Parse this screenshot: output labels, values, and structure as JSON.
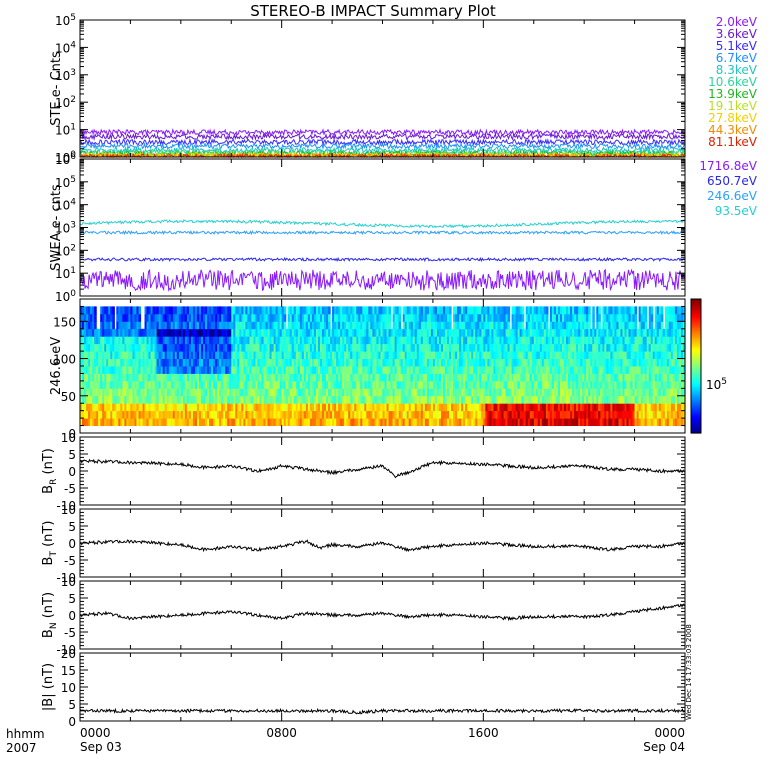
{
  "title": "STEREO-B IMPACT Summary Plot",
  "stamp": "Wed Dec 14 17:33:03 2008",
  "colors": {
    "ste": [
      "#8a1aff",
      "#6a1acf",
      "#3a2bff",
      "#1e90ff",
      "#23c4c4",
      "#2fd59a",
      "#22b422",
      "#b8e022",
      "#f0d000",
      "#f08c00",
      "#d82200"
    ],
    "swea": [
      "#8a1aff",
      "#2a28e8",
      "#2aa0ff",
      "#23d0d0"
    ]
  },
  "x_axis": {
    "corner_top": "hhmm",
    "corner_bottom": "2007",
    "ticks": [
      {
        "label": "0000",
        "sub": "Sep 03",
        "t": 0
      },
      {
        "label": "0800",
        "sub": "",
        "t": 8
      },
      {
        "label": "1600",
        "sub": "",
        "t": 16
      },
      {
        "label": "0000",
        "sub": "Sep 04",
        "t": 24
      }
    ]
  },
  "chart_data": [
    {
      "type": "line",
      "name": "ste",
      "ylabel": "STE e- Cnts",
      "yscale": "log",
      "ylim": [
        1,
        100000
      ],
      "yticks": [
        {
          "b": "10",
          "e": "0"
        },
        {
          "b": "10",
          "e": "1"
        },
        {
          "b": "10",
          "e": "2"
        },
        {
          "b": "10",
          "e": "3"
        },
        {
          "b": "10",
          "e": "4"
        },
        {
          "b": "10",
          "e": "5"
        }
      ],
      "xlim": [
        0,
        24
      ],
      "legend": [
        "2.0keV",
        "3.6keV",
        "5.1keV",
        "6.7keV",
        "8.3keV",
        "10.6keV",
        "13.9keV",
        "19.1keV",
        "27.8keV",
        "44.3keV",
        "81.1keV"
      ],
      "levels": [
        8,
        5.5,
        3.5,
        2.5,
        1.8,
        1.5,
        1.3,
        1.2,
        1.1,
        1.05,
        1.02
      ]
    },
    {
      "type": "line",
      "name": "swea",
      "ylabel": "SWEA e- cnts",
      "yscale": "log",
      "ylim": [
        1,
        1000000
      ],
      "yticks": [
        {
          "b": "10",
          "e": "0"
        },
        {
          "b": "10",
          "e": "1"
        },
        {
          "b": "10",
          "e": "2"
        },
        {
          "b": "10",
          "e": "3"
        },
        {
          "b": "10",
          "e": "4"
        },
        {
          "b": "10",
          "e": "5"
        }
      ],
      "top_tick": {
        "b": "10",
        "e": "6"
      },
      "xlim": [
        0,
        24
      ],
      "legend": [
        "1716.8eV",
        "650.7eV",
        "246.6eV",
        "93.5eV"
      ],
      "levels": [
        5,
        40,
        600,
        1500
      ]
    },
    {
      "type": "heatmap",
      "name": "pad",
      "ylabel": "246.6 eV",
      "ylim": [
        0,
        180
      ],
      "yticks": [
        0,
        50,
        100,
        150
      ],
      "xlim": [
        0,
        24
      ],
      "colorbar_label": {
        "b": "10",
        "e": "5"
      }
    },
    {
      "type": "line",
      "name": "br",
      "ylabel": "B",
      "ylabel_sub": "R",
      "ylabel_unit": "(nT)",
      "ylim": [
        -10,
        10
      ],
      "yticks": [
        -10,
        -5,
        0,
        5,
        10
      ],
      "xlim": [
        0,
        24
      ],
      "x": [
        0,
        2,
        4,
        5,
        6,
        7,
        7.5,
        8,
        9,
        10,
        10.5,
        11,
        12,
        12.5,
        13,
        14,
        16,
        18,
        20,
        21,
        22,
        23,
        24
      ],
      "y": [
        3,
        2.5,
        2,
        1,
        1.5,
        0,
        0.5,
        1.5,
        0.5,
        -0.5,
        0,
        0.5,
        1.5,
        -1.5,
        -0.5,
        2.5,
        2,
        1,
        1.5,
        0.5,
        0.5,
        0,
        0
      ]
    },
    {
      "type": "line",
      "name": "bt",
      "ylabel": "B",
      "ylabel_sub": "T",
      "ylabel_unit": "(nT)",
      "ylim": [
        -10,
        10
      ],
      "yticks": [
        -10,
        -5,
        0,
        5,
        10
      ],
      "xlim": [
        0,
        24
      ],
      "x": [
        0,
        2,
        4,
        5,
        6,
        7,
        8,
        9,
        9.5,
        10,
        11,
        12,
        13,
        14,
        16,
        18,
        20,
        21,
        22,
        23,
        24
      ],
      "y": [
        0,
        0.5,
        -0.5,
        -2,
        -1,
        -2,
        -1,
        0.5,
        -1.5,
        -0.5,
        -1,
        0,
        -2,
        -1,
        0,
        -1,
        -1,
        -2,
        -1,
        -1,
        0
      ]
    },
    {
      "type": "line",
      "name": "bn",
      "ylabel": "B",
      "ylabel_sub": "N",
      "ylabel_unit": "(nT)",
      "ylim": [
        -10,
        10
      ],
      "yticks": [
        -10,
        -5,
        0,
        5,
        10
      ],
      "xlim": [
        0,
        24
      ],
      "x": [
        0,
        1,
        2,
        3,
        4,
        5,
        6,
        7,
        8,
        9,
        10,
        11,
        12,
        13,
        14,
        15,
        16,
        17,
        18,
        19,
        20,
        21,
        22,
        23,
        24
      ],
      "y": [
        0,
        0.5,
        -1,
        -0.5,
        0,
        0.5,
        1,
        0,
        -1,
        0.5,
        0,
        0,
        0.5,
        -0.5,
        0,
        0,
        -0.5,
        -1,
        -0.5,
        -0.5,
        -0.5,
        0,
        1,
        2,
        3
      ]
    },
    {
      "type": "line",
      "name": "bmag",
      "ylabel": "|B|",
      "ylabel_unit": "(nT)",
      "ylim": [
        0,
        20
      ],
      "yticks": [
        0,
        5,
        10,
        15,
        20
      ],
      "xlim": [
        0,
        24
      ],
      "x": [
        0,
        2,
        4,
        6,
        8,
        10,
        11,
        12,
        14,
        16,
        18,
        20,
        22,
        24
      ],
      "y": [
        3,
        3,
        3,
        3,
        3,
        3,
        2.5,
        3,
        3,
        3,
        3,
        3,
        3,
        3
      ]
    }
  ]
}
